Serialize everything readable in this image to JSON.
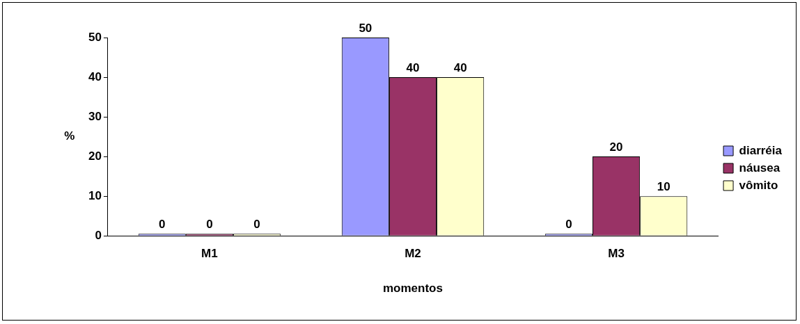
{
  "chart_data": {
    "type": "bar",
    "categories": [
      "M1",
      "M2",
      "M3"
    ],
    "series": [
      {
        "name": "diarréia",
        "color": "#9999ff",
        "values": [
          0,
          50,
          0
        ]
      },
      {
        "name": "náusea",
        "color": "#993366",
        "values": [
          0,
          40,
          20
        ]
      },
      {
        "name": "vômito",
        "color": "#ffffcc",
        "values": [
          0,
          40,
          10
        ]
      }
    ],
    "xlabel": "momentos",
    "ylabel": "%",
    "ylim": [
      0,
      50
    ],
    "yticks": [
      0,
      10,
      20,
      30,
      40,
      50
    ],
    "grid": false,
    "legend": "right",
    "data_labels": true
  }
}
